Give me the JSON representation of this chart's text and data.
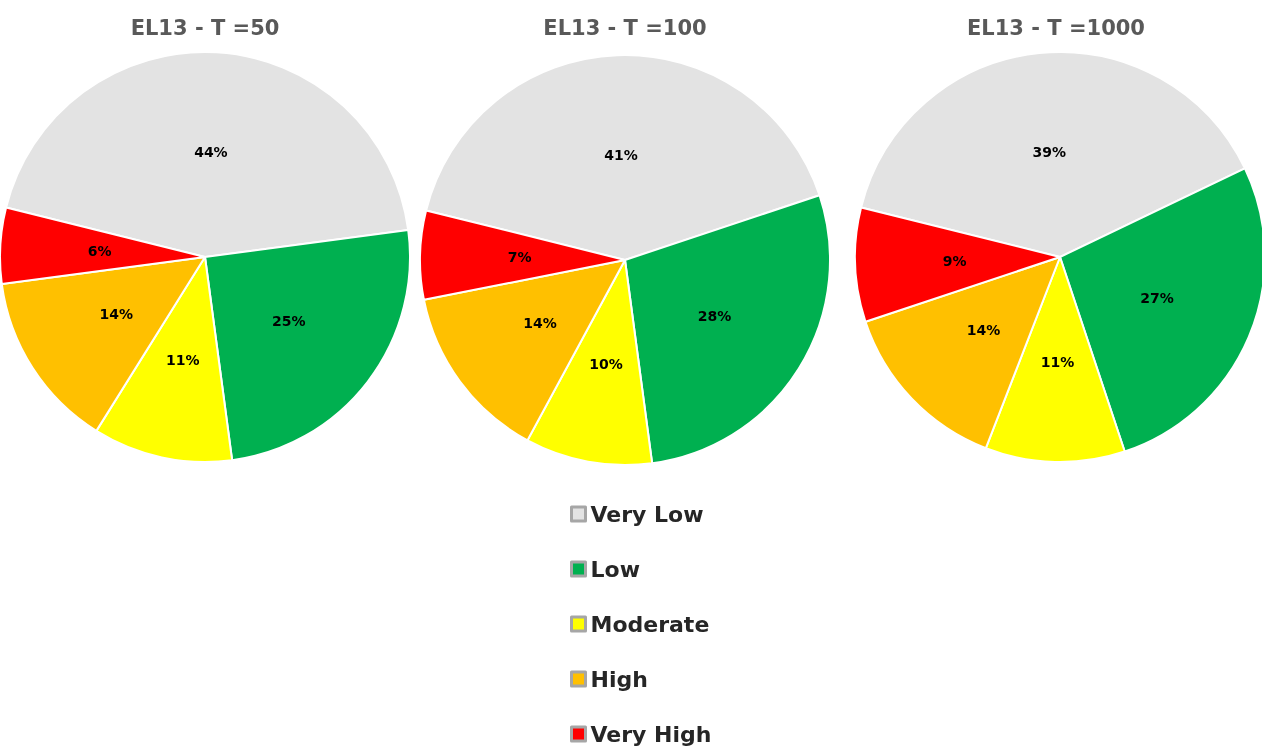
{
  "chart_data": [
    {
      "type": "pie",
      "title": "EL13 - T =50",
      "categories": [
        null,
        null,
        null,
        null,
        null
      ],
      "values": [
        44,
        25,
        11,
        14,
        6
      ],
      "value_labels": [
        "44%",
        "25%",
        "11%",
        "14%",
        "6%"
      ],
      "colors": [
        "#e3e3e3",
        "#00b050",
        "#ffff00",
        "#ffc000",
        "#ff0000"
      ],
      "legend": false
    },
    {
      "type": "pie",
      "title": "EL13 - T =100",
      "categories": [
        "Very Low",
        "Low",
        "Moderate",
        "High",
        "Very High"
      ],
      "values": [
        41,
        28,
        10,
        14,
        7
      ],
      "value_labels": [
        "41%",
        "28%",
        "10%",
        "14%",
        "7%"
      ],
      "colors": [
        "#e3e3e3",
        "#00b050",
        "#ffff00",
        "#ffc000",
        "#ff0000"
      ],
      "legend": "bottom"
    },
    {
      "type": "pie",
      "title": "EL13 - T =1000",
      "categories": [
        null,
        null,
        null,
        null,
        null
      ],
      "values": [
        39,
        27,
        11,
        14,
        9
      ],
      "value_labels": [
        "39%",
        "27%",
        "11%",
        "14%",
        "9%"
      ],
      "colors": [
        "#e3e3e3",
        "#00b050",
        "#ffff00",
        "#ffc000",
        "#ff0000"
      ],
      "legend": false
    }
  ]
}
